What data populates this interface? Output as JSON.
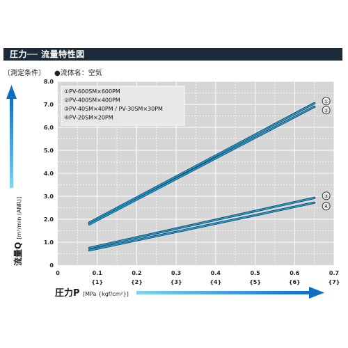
{
  "header": {
    "title": "圧力── 流量特性図",
    "condition_label": "〔測定条件〕",
    "condition_value": "●流体名：空気"
  },
  "chart_data": {
    "type": "line",
    "xlabel_main": "圧力P",
    "xlabel_unit": "[MPa {kgf/cm²}]",
    "ylabel_main": "流量Q",
    "ylabel_unit": "[m³/min (ANR)]",
    "xlim": [
      0,
      0.7
    ],
    "ylim": [
      0,
      8.0
    ],
    "x_ticks": [
      0,
      0.1,
      0.2,
      0.3,
      0.4,
      0.5,
      0.6,
      0.7
    ],
    "x_tick_labels": [
      "0",
      "0.1",
      "0.2",
      "0.3",
      "0.4",
      "0.5",
      "0.6",
      "0.7"
    ],
    "x_tick_labels_kgf": [
      "",
      "{1}",
      "{2}",
      "{3}",
      "{4}",
      "{5}",
      "{6}",
      "{7}"
    ],
    "y_ticks": [
      0,
      1.0,
      2.0,
      3.0,
      4.0,
      5.0,
      6.0,
      7.0,
      8.0
    ],
    "y_tick_labels": [
      "0",
      "1.0",
      "2.0",
      "3.0",
      "4.0",
      "5.0",
      "6.0",
      "7.0",
      "8.0"
    ],
    "grid": true,
    "legend_position": "top-left",
    "legend": [
      "①PV-600SM×600PM",
      "②PV-400SM×400PM",
      "③PV-40SM×40PM / PV-30SM×30PM",
      "④PV-20SM×20PM"
    ],
    "series": [
      {
        "name": "①",
        "x": [
          0.08,
          0.65
        ],
        "y": [
          1.85,
          7.05
        ]
      },
      {
        "name": "②",
        "x": [
          0.08,
          0.65
        ],
        "y": [
          1.78,
          6.9
        ]
      },
      {
        "name": "③",
        "x": [
          0.08,
          0.65
        ],
        "y": [
          0.75,
          2.93
        ]
      },
      {
        "name": "④",
        "x": [
          0.08,
          0.65
        ],
        "y": [
          0.65,
          2.72
        ]
      }
    ],
    "line_color": "#1aa6d6",
    "line_outline": "#163a5c",
    "plot_bg": "#d6d6d6",
    "arrow_color": "#1a8fd6"
  }
}
